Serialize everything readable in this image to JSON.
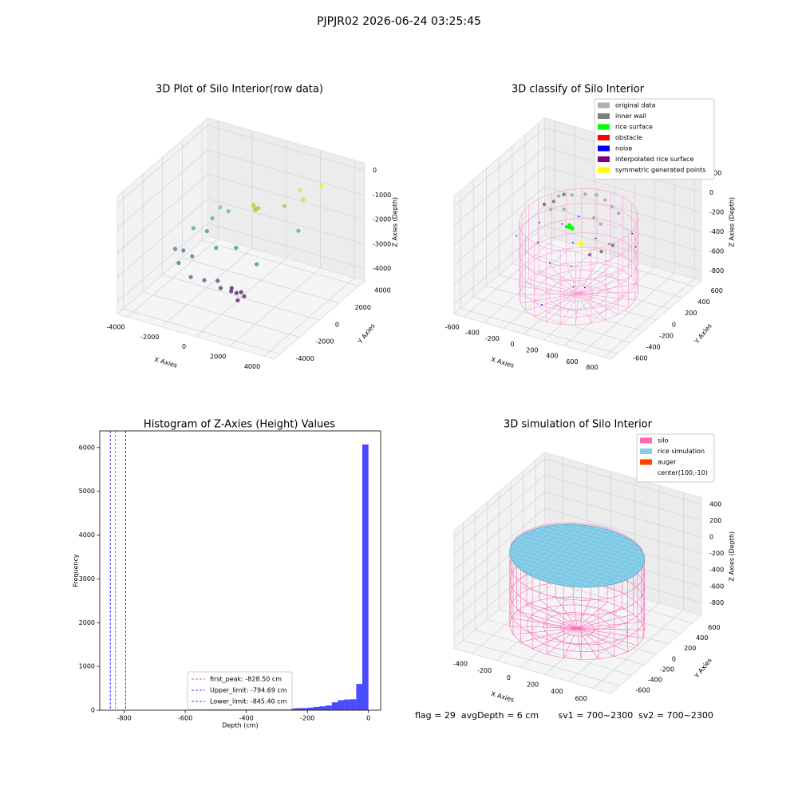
{
  "suptitle": "PJPJR02 2026-06-24 03:25:45",
  "footer": "flag = 29  avgDepth = 6 cm       sv1 = 700~2300  sv2 = 700~2300",
  "chart_data": [
    {
      "type": "scatter3d",
      "title": "3D Plot of Silo Interior(row data)",
      "xlabel": "X Axies",
      "ylabel": "Y Axies",
      "zlabel": "Z Axies (Depth)",
      "xlim": [
        -4600,
        4600
      ],
      "ylim": [
        -4600,
        4600
      ],
      "zlim": [
        -4500,
        300
      ],
      "xticks": [
        -4000,
        -2000,
        0,
        2000,
        4000
      ],
      "yticks": [
        -4000,
        -2000,
        0,
        2000,
        4000
      ],
      "zticks": [
        -4000,
        -3000,
        -2000,
        -1000,
        0
      ],
      "cmap": "viridis",
      "x": [
        500,
        600,
        400,
        550,
        700,
        450,
        650,
        -1500,
        -1200,
        -1800,
        2000,
        2500,
        3000,
        1500,
        -2500,
        -2000,
        -1000,
        0,
        1500,
        2500,
        -3000,
        -2800,
        -2500,
        -2000,
        -1500,
        -1000,
        -500,
        0,
        200,
        500,
        -200,
        300,
        700,
        -500
      ],
      "y": [
        500,
        400,
        600,
        550,
        500,
        450,
        650,
        500,
        800,
        200,
        2500,
        2000,
        3000,
        1800,
        -500,
        0,
        -800,
        -500,
        -1000,
        1500,
        -1500,
        -1000,
        -2000,
        -1500,
        -2500,
        -2000,
        -1500,
        -1000,
        -800,
        -1200,
        -600,
        -500,
        -900,
        -1200
      ],
      "z": [
        -900,
        -950,
        -850,
        -1000,
        -900,
        -800,
        -950,
        -1300,
        -1500,
        -1700,
        -600,
        -700,
        -400,
        -1100,
        -2000,
        -2200,
        -2400,
        -2300,
        -2500,
        -1800,
        -2600,
        -2800,
        -2900,
        -2700,
        -3100,
        -3300,
        -3400,
        -3900,
        -4000,
        -4100,
        -3950,
        -4050,
        -4000,
        -3800
      ]
    },
    {
      "type": "scatter3d",
      "title": "3D classify of Silo Interior",
      "xlabel": "X Axies",
      "ylabel": "Y Axies",
      "zlabel": "Z Axies (Depth)",
      "xlim": [
        -700,
        870
      ],
      "ylim": [
        -700,
        700
      ],
      "zlim": [
        -900,
        300
      ],
      "xticks": [
        -600,
        -400,
        -200,
        0,
        200,
        400,
        600,
        800
      ],
      "yticks": [
        -600,
        -400,
        -200,
        0,
        200,
        400,
        600
      ],
      "zticks": [
        -800,
        -600,
        -400,
        -200,
        0,
        200
      ],
      "silo": {
        "center": [
          100,
          -10
        ],
        "radius": 500,
        "zlim": [
          -850,
          -100
        ],
        "color": "#ff9ad5"
      },
      "series": [
        {
          "name": "original data",
          "color": "#b0b0b0",
          "x": [
            -300,
            -200,
            -100,
            0,
            100,
            200,
            300,
            -250,
            -150,
            150,
            250
          ],
          "y": [
            300,
            350,
            400,
            420,
            400,
            350,
            300,
            100,
            150,
            150,
            100
          ],
          "z": [
            -150,
            -140,
            -130,
            -120,
            -130,
            -140,
            -150,
            -160,
            -155,
            -155,
            -160
          ]
        },
        {
          "name": "inner wall",
          "color": "#808080",
          "x": [
            -380,
            -350,
            -300,
            400,
            450,
            500
          ],
          "y": [
            200,
            300,
            380,
            -300,
            -200,
            -100
          ],
          "z": [
            -200,
            -220,
            -180,
            -200,
            -210,
            -190
          ]
        },
        {
          "name": "rice surface",
          "color": "#00ff00",
          "x": [
            0,
            20,
            -20,
            10,
            -10,
            30
          ],
          "y": [
            0,
            10,
            -10,
            -20,
            20,
            0
          ],
          "z": [
            -200,
            -210,
            -205,
            -195,
            -200,
            -215
          ]
        },
        {
          "name": "obstacle",
          "color": "#ff0000",
          "x": [],
          "y": [],
          "z": []
        },
        {
          "name": "noise",
          "color": "#0000ff",
          "x": [
            -400,
            -300,
            -200,
            0,
            100,
            200,
            300,
            400,
            500,
            -100,
            50,
            150,
            -250,
            350,
            600
          ],
          "y": [
            -200,
            0,
            200,
            -300,
            -100,
            100,
            -400,
            0,
            200,
            300,
            -500,
            -200,
            -100,
            -300,
            100
          ],
          "z": [
            -300,
            -250,
            -350,
            -400,
            -280,
            -320,
            -500,
            -260,
            -240,
            -300,
            -700,
            -450,
            -380,
            -550,
            -290
          ]
        },
        {
          "name": "interpolated rice surface",
          "color": "#800080",
          "x": [],
          "y": [],
          "z": []
        },
        {
          "name": "symmetric generated points",
          "color": "#ffff00",
          "x": [
            200,
            220
          ],
          "y": [
            -150,
            -130
          ],
          "z": [
            -230,
            -240
          ]
        }
      ]
    },
    {
      "type": "histogram",
      "title": "Histogram of Z-Axies (Height) Values",
      "xlabel": "Depth (cm)",
      "ylabel": "Frequency",
      "color": "#4b4bff",
      "xlim": [
        -880,
        40
      ],
      "ylim": [
        0,
        6380
      ],
      "xticks": [
        -800,
        -600,
        -400,
        -200,
        0
      ],
      "yticks": [
        0,
        1000,
        2000,
        3000,
        4000,
        5000,
        6000
      ],
      "bins": [
        -580,
        -560,
        -540,
        -520,
        -500,
        -480,
        -460,
        -440,
        -420,
        -400,
        -380,
        -360,
        -340,
        -320,
        -300,
        -280,
        -260,
        -240,
        -220,
        -200,
        -180,
        -160,
        -140,
        -120,
        -100,
        -80,
        -60,
        -40,
        -20,
        0
      ],
      "values": [
        5,
        6,
        6,
        8,
        8,
        10,
        10,
        10,
        15,
        15,
        15,
        20,
        20,
        25,
        30,
        35,
        40,
        45,
        50,
        60,
        75,
        90,
        110,
        180,
        230,
        245,
        250,
        600,
        6070
      ],
      "vlines": [
        {
          "label": "first_peak: -828.50 cm",
          "value": -828.5,
          "color": "#cc3333"
        },
        {
          "label": "Upper_limit: -794.69 cm",
          "value": -794.69,
          "color": "#0000ff"
        },
        {
          "label": "Lower_limit: -845.40 cm",
          "value": -845.4,
          "color": "#0000ff"
        }
      ]
    },
    {
      "type": "surface3d",
      "title": "3D simulation of Silo Interior",
      "xlabel": "X Axies",
      "ylabel": "Y Axies",
      "zlabel": "Z Axies (Depth)",
      "xlim": [
        -550,
        750
      ],
      "ylim": [
        -750,
        750
      ],
      "zlim": [
        -950,
        480
      ],
      "xticks": [
        -400,
        -200,
        0,
        200,
        400,
        600
      ],
      "yticks": [
        -600,
        -400,
        -200,
        0,
        200,
        400,
        600
      ],
      "zticks": [
        -800,
        -600,
        -400,
        -200,
        0,
        200,
        400
      ],
      "series": [
        {
          "name": "silo",
          "color": "#ff69b4",
          "center": [
            100,
            -10
          ],
          "radius": 500,
          "zlim": [
            -900,
            0
          ]
        },
        {
          "name": "rice simulation",
          "color": "#87ceeb",
          "z": -20
        },
        {
          "name": "auger",
          "color": "#ff4500"
        },
        {
          "name": "center(100,-10)",
          "color": null
        }
      ]
    }
  ]
}
